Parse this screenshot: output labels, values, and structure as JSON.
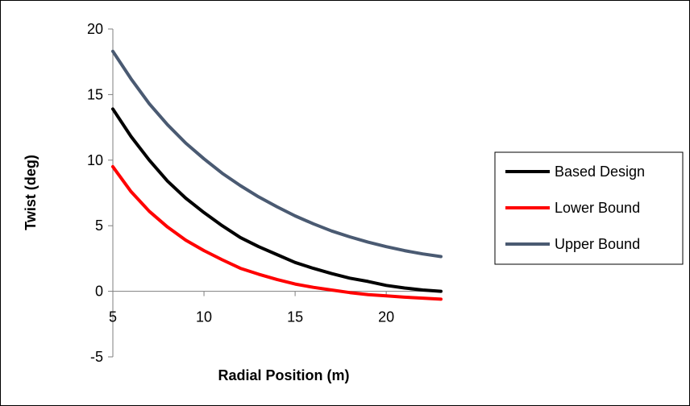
{
  "chart_data": {
    "type": "line",
    "xlabel": "Radial Position  (m)",
    "ylabel": "Twist (deg)",
    "xlim": [
      5,
      23
    ],
    "ylim": [
      -5,
      20
    ],
    "xticks": [
      "5",
      "10",
      "15",
      "20"
    ],
    "yticks": [
      "-5",
      "0",
      "5",
      "10",
      "15",
      "20"
    ],
    "legend_position": "right",
    "grid": false,
    "series": [
      {
        "name": "Based Design",
        "color": "#000000",
        "x": [
          5,
          6,
          7,
          8,
          9,
          10,
          11,
          12,
          13,
          14,
          15,
          16,
          17,
          18,
          19,
          20,
          21,
          22,
          23
        ],
        "y": [
          13.9,
          11.8,
          10.0,
          8.4,
          7.1,
          6.0,
          5.0,
          4.1,
          3.4,
          2.8,
          2.2,
          1.75,
          1.35,
          1.0,
          0.75,
          0.45,
          0.25,
          0.1,
          0.0
        ]
      },
      {
        "name": "Lower Bound",
        "color": "#ff0000",
        "x": [
          5,
          6,
          7,
          8,
          9,
          10,
          11,
          12,
          13,
          14,
          15,
          16,
          17,
          18,
          19,
          20,
          21,
          22,
          23
        ],
        "y": [
          9.5,
          7.6,
          6.1,
          4.9,
          3.9,
          3.1,
          2.4,
          1.75,
          1.3,
          0.9,
          0.55,
          0.3,
          0.1,
          -0.1,
          -0.25,
          -0.35,
          -0.45,
          -0.52,
          -0.6
        ]
      },
      {
        "name": "Upper Bound",
        "color": "#4a5a72",
        "x": [
          5,
          6,
          7,
          8,
          9,
          10,
          11,
          12,
          13,
          14,
          15,
          16,
          17,
          18,
          19,
          20,
          21,
          22,
          23
        ],
        "y": [
          18.3,
          16.2,
          14.3,
          12.7,
          11.3,
          10.1,
          9.0,
          8.05,
          7.2,
          6.45,
          5.75,
          5.15,
          4.6,
          4.15,
          3.75,
          3.4,
          3.1,
          2.85,
          2.65
        ]
      }
    ]
  }
}
